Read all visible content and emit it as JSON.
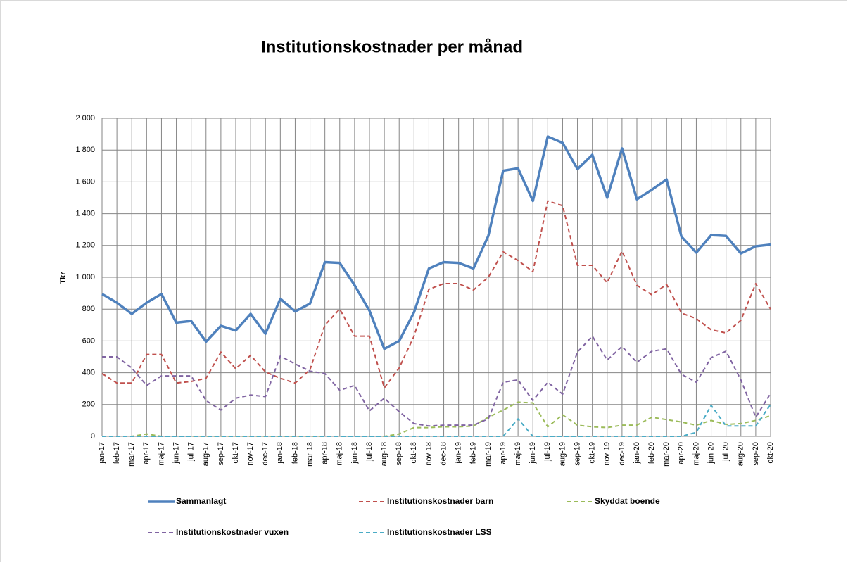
{
  "chart_data": {
    "type": "line",
    "title": "Institutionskostnader per månad",
    "y_label": "Tkr",
    "categories": [
      "jan-17",
      "feb-17",
      "mar-17",
      "apr-17",
      "maj-17",
      "jun-17",
      "jul-17",
      "aug-17",
      "sep-17",
      "okt-17",
      "nov-17",
      "dec-17",
      "jan-18",
      "feb-18",
      "mar-18",
      "apr-18",
      "maj-18",
      "jun-18",
      "jul-18",
      "aug-18",
      "sep-18",
      "okt-18",
      "nov-18",
      "dec-18",
      "jan-19",
      "feb-19",
      "mar-19",
      "apr-19",
      "maj-19",
      "jun-19",
      "jul-19",
      "aug-19",
      "sep-19",
      "okt-19",
      "nov-19",
      "dec-19",
      "jan-20",
      "feb-20",
      "mar-20",
      "apr-20",
      "maj-20",
      "jun-20",
      "jul-20",
      "aug-20",
      "sep-20",
      "okt-20"
    ],
    "series": [
      {
        "name": "Sammanlagt",
        "color": "#4f81bd",
        "dashed": false,
        "values": [
          895,
          840,
          770,
          840,
          895,
          715,
          725,
          595,
          695,
          665,
          770,
          645,
          865,
          785,
          835,
          1095,
          1090,
          950,
          790,
          550,
          600,
          780,
          1055,
          1095,
          1090,
          1055,
          1260,
          1670,
          1685,
          1480,
          1885,
          1845,
          1680,
          1770,
          1500,
          1810,
          1490,
          1550,
          1615,
          1255,
          1155,
          1265,
          1260,
          1150,
          1195,
          1205
        ]
      },
      {
        "name": "Institutionskostnader barn",
        "color": "#c0504d",
        "dashed": true,
        "values": [
          395,
          335,
          335,
          515,
          515,
          335,
          345,
          365,
          530,
          425,
          510,
          405,
          365,
          335,
          420,
          700,
          800,
          630,
          630,
          305,
          430,
          630,
          925,
          960,
          960,
          920,
          1000,
          1160,
          1105,
          1035,
          1480,
          1450,
          1075,
          1075,
          965,
          1165,
          950,
          890,
          955,
          775,
          740,
          670,
          650,
          730,
          960,
          800
        ]
      },
      {
        "name": "Skyddat boende",
        "color": "#9bbb59",
        "dashed": true,
        "values": [
          0,
          0,
          0,
          15,
          0,
          0,
          0,
          0,
          0,
          0,
          0,
          0,
          0,
          0,
          0,
          0,
          0,
          0,
          0,
          0,
          15,
          55,
          55,
          60,
          60,
          65,
          120,
          165,
          215,
          210,
          60,
          135,
          70,
          60,
          55,
          70,
          70,
          120,
          105,
          90,
          70,
          100,
          75,
          80,
          100,
          130
        ]
      },
      {
        "name": "Institutionskostnader vuxen",
        "color": "#8064a2",
        "dashed": true,
        "values": [
          500,
          500,
          430,
          320,
          380,
          380,
          380,
          225,
          165,
          240,
          260,
          250,
          505,
          455,
          410,
          395,
          290,
          320,
          160,
          240,
          155,
          80,
          65,
          70,
          70,
          70,
          110,
          340,
          355,
          225,
          340,
          265,
          530,
          630,
          480,
          565,
          465,
          535,
          550,
          390,
          340,
          495,
          535,
          355,
          120,
          270
        ]
      },
      {
        "name": "Institutionskostnader LSS",
        "color": "#4bacc6",
        "dashed": true,
        "values": [
          0,
          0,
          0,
          0,
          0,
          0,
          0,
          0,
          0,
          0,
          0,
          0,
          0,
          0,
          0,
          0,
          0,
          0,
          0,
          0,
          0,
          0,
          0,
          0,
          0,
          0,
          0,
          0,
          110,
          0,
          0,
          0,
          0,
          0,
          0,
          0,
          0,
          0,
          0,
          0,
          25,
          195,
          65,
          65,
          65,
          200
        ]
      }
    ],
    "ylim": [
      0,
      2000
    ],
    "yticks": [
      0,
      {
        "value": 200,
        "label": "200"
      },
      {
        "value": 400,
        "label": "400"
      },
      {
        "value": 600,
        "label": "600"
      },
      {
        "value": 800,
        "label": "800"
      },
      {
        "value": 1000,
        "label": "1 000"
      },
      {
        "value": 1200,
        "label": "1 200"
      },
      {
        "value": 1400,
        "label": "1 400"
      },
      {
        "value": 1600,
        "label": "1 600"
      },
      {
        "value": 1800,
        "label": "1 800"
      },
      {
        "value": 2000,
        "label": "2 000"
      }
    ],
    "grid": true
  }
}
